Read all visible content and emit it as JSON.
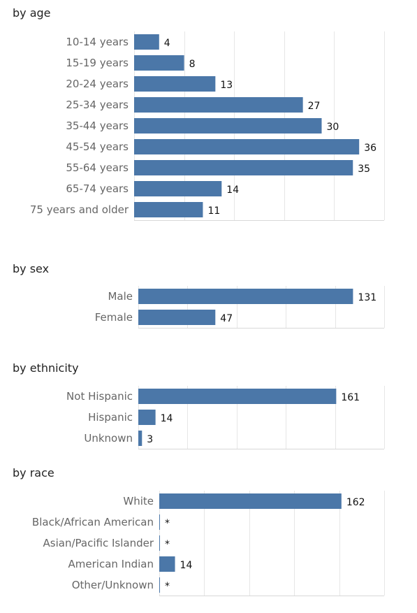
{
  "colors": {
    "bar": "#4b77a8",
    "grid": "#e6e6e6",
    "label": "#666666"
  },
  "chart_data": [
    {
      "type": "bar",
      "orientation": "horizontal",
      "title": "by age",
      "categories": [
        "10-14 years",
        "15-19 years",
        "20-24 years",
        "25-34 years",
        "35-44 years",
        "45-54 years",
        "55-64 years",
        "65-74 years",
        "75 years and older"
      ],
      "values": [
        4,
        8,
        13,
        27,
        30,
        36,
        35,
        14,
        11
      ],
      "value_labels": [
        "4",
        "8",
        "13",
        "27",
        "30",
        "36",
        "35",
        "14",
        "11"
      ],
      "xlim": [
        0,
        40
      ],
      "grid": true
    },
    {
      "type": "bar",
      "orientation": "horizontal",
      "title": "by sex",
      "categories": [
        "Male",
        "Female"
      ],
      "values": [
        131,
        47
      ],
      "value_labels": [
        "131",
        "47"
      ],
      "xlim": [
        0,
        150
      ],
      "grid": true
    },
    {
      "type": "bar",
      "orientation": "horizontal",
      "title": "by ethnicity",
      "categories": [
        "Not Hispanic",
        "Hispanic",
        "Unknown"
      ],
      "values": [
        161,
        14,
        3
      ],
      "value_labels": [
        "161",
        "14",
        "3"
      ],
      "xlim": [
        0,
        200
      ],
      "grid": true
    },
    {
      "type": "bar",
      "orientation": "horizontal",
      "title": "by race",
      "categories": [
        "White",
        "Black/African American",
        "Asian/Pacific Islander",
        "American Indian",
        "Other/Unknown"
      ],
      "values": [
        162,
        null,
        null,
        14,
        null
      ],
      "value_labels": [
        "162",
        "*",
        "*",
        "14",
        "*"
      ],
      "xlim": [
        0,
        200
      ],
      "grid": true
    }
  ]
}
